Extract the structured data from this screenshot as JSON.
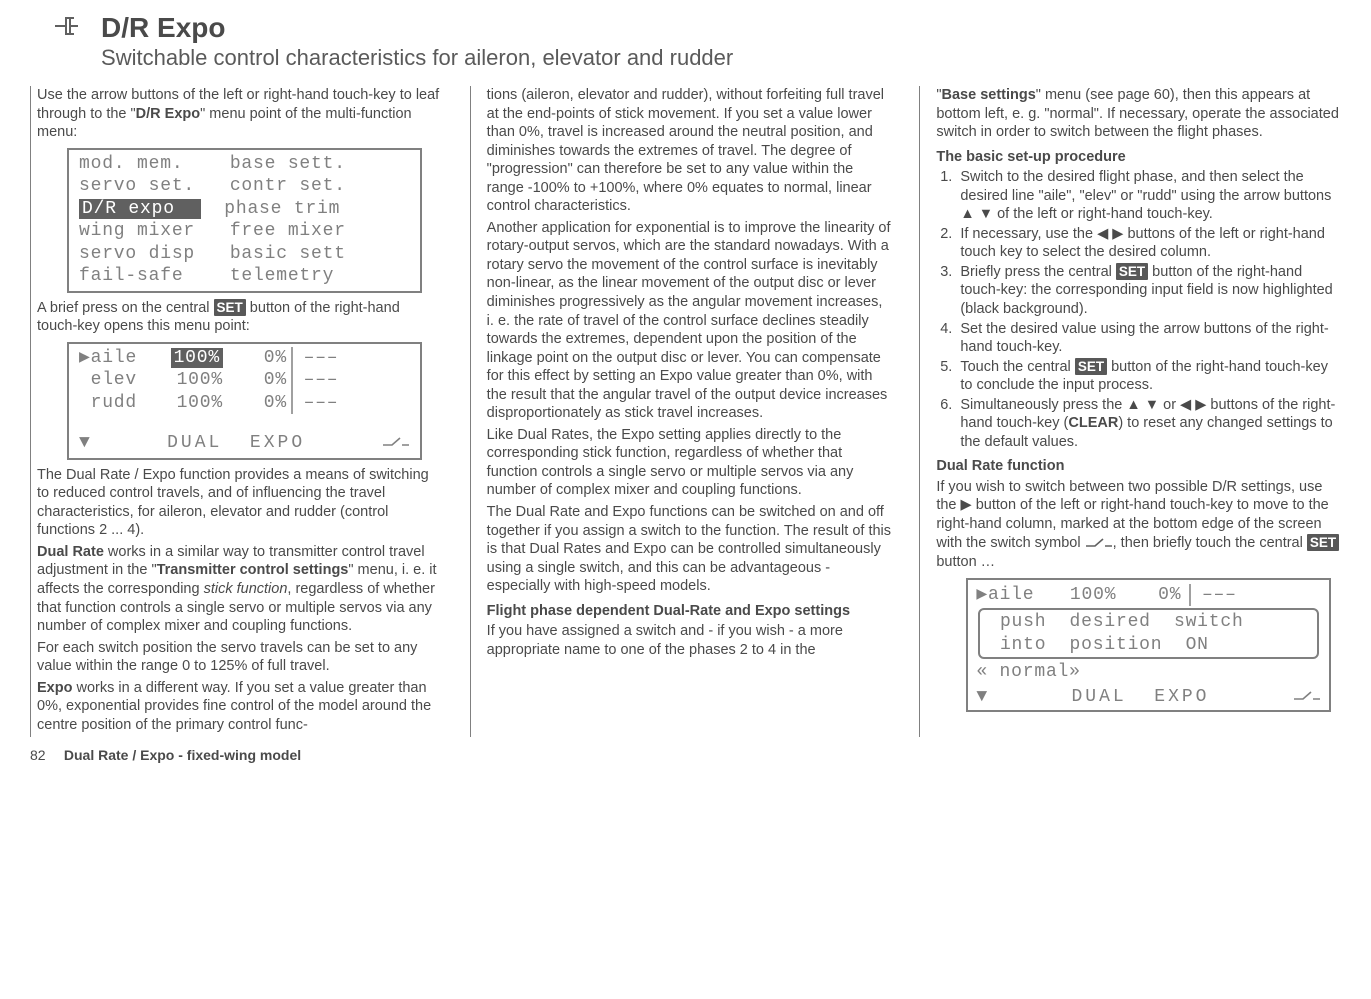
{
  "header": {
    "title": "D/R Expo",
    "subtitle": "Switchable control characteristics for aileron, elevator and rudder"
  },
  "col1": {
    "p1a": "Use the arrow buttons of the left or right-hand touch-key to leaf through to the \"",
    "p1b": "D/R Expo",
    "p1c": "\" menu point of the multi-function menu:",
    "lcd1": {
      "rows": [
        [
          "mod. mem.",
          "base sett."
        ],
        [
          "servo set.",
          "contr set."
        ],
        [
          "D/R expo",
          "phase trim"
        ],
        [
          "wing mixer",
          "free mixer"
        ],
        [
          "servo disp",
          "basic sett"
        ],
        [
          "fail-safe",
          "telemetry"
        ]
      ],
      "highlight_row": 2
    },
    "p2a": "A brief press on the central ",
    "p2b": "SET",
    "p2c": " button of the right-hand touch-key opens this menu point:",
    "lcd2": {
      "rows": [
        {
          "ch": "aile",
          "dual": "100%",
          "expo": "0%",
          "sw": "–––",
          "sel": true,
          "hl": true
        },
        {
          "ch": "elev",
          "dual": "100%",
          "expo": "0%",
          "sw": "–––"
        },
        {
          "ch": "rudd",
          "dual": "100%",
          "expo": "0%",
          "sw": "–––"
        }
      ],
      "bottom": {
        "l": "DUAL",
        "r": "EXPO"
      }
    },
    "p3": "The Dual Rate / Expo function provides a means of switching to reduced control travels, and of influencing the travel characteristics, for aileron, elevator and rudder (control functions 2 ... 4).",
    "p4a": "Dual Rate",
    "p4b": " works in a similar way to transmitter control travel adjustment in the \"",
    "p4c": "Transmitter control settings",
    "p4d": "\" menu, i. e. it affects the corresponding ",
    "p4e": "stick function",
    "p4f": ", regardless of whether that function controls a single servo or multiple servos via any number of complex mixer and coupling functions.",
    "p5": "For each switch position the servo travels can be set to any value within the range 0 to 125% of full travel.",
    "p6a": "Expo",
    "p6b": " works in a different way. If you set a value greater than 0%, exponential provides fine control of the model around the centre position of the primary control func-"
  },
  "col2": {
    "p1": "tions (aileron, elevator and rudder), without forfeiting full travel at the end-points of stick movement. If you set a value lower than 0%, travel is increased around the neutral position, and diminishes towards the extremes of travel. The degree of \"progression\" can therefore be set to any value within the range -100% to +100%, where 0% equates to normal, linear control characteristics.",
    "p2": "Another application for exponential is to improve the linearity of rotary-output servos, which are the standard nowadays. With a rotary servo the movement of the control surface is inevitably non-linear, as the linear movement of the output disc or lever diminishes progressively as the angular movement increases, i. e. the rate of travel of the control surface declines steadily towards the extremes, dependent upon the position of the linkage point on the output disc or lever. You can compensate for this effect by setting an Expo value greater than 0%, with the result that the angular travel of the output device increases disproportionately as stick travel increases.",
    "p3": "Like Dual Rates, the Expo setting applies directly to the corresponding stick function, regardless of whether that function controls a single servo or multiple servos via any number of complex mixer and coupling functions.",
    "p4": "The Dual Rate and Expo functions can be switched on and off together if you assign a switch to the function. The result of this is that Dual Rates and Expo can be controlled simultaneously using a single switch, and this can be advantageous - especially with high-speed models.",
    "h1": "Flight phase dependent Dual-Rate and Expo settings",
    "p5": "If you have assigned a switch and - if you wish - a more appropriate name to one of the phases 2 to 4 in the"
  },
  "col3": {
    "p1a": "\"",
    "p1b": "Base settings",
    "p1c": "\" menu (see page 60), then this appears at bottom left, e. g. \"normal\". If necessary, operate the associated switch in order to switch between the flight phases.",
    "h1": "The basic set-up procedure",
    "steps": [
      "Switch to the desired flight phase, and then select the desired line \"aile\", \"elev\" or \"rudd\" using the arrow buttons ▲ ▼ of the left or right-hand touch-key.",
      "If necessary, use the ◀ ▶ buttons of the left or right-hand touch key to select the desired column.",
      "Briefly press the central |SET| button of the right-hand touch-key: the corresponding input field is now highlighted (black background).",
      "Set the desired value using the arrow buttons of the right-hand touch-key.",
      "Touch the central |SET| button of the right-hand touch-key to conclude the input process.",
      "Simultaneously press the ▲ ▼ or ◀ ▶ buttons of the right-hand touch-key (|CLEAR|) to reset any changed settings to the default values."
    ],
    "h2": "Dual Rate function",
    "p2a": "If you wish to switch between two possible D/R settings, use the ▶ button of the left or right-hand touch-key to move to the right-hand column, marked at the bottom edge of the screen with the switch symbol ",
    "p2b": ", then briefly touch the central ",
    "p2c": "SET",
    "p2d": " button …",
    "lcd3": {
      "row": {
        "ch": "aile",
        "dual": "100%",
        "expo": "0%",
        "sw": "–––"
      },
      "msg1": " push  desired  switch",
      "msg2": " into  position  ON",
      "phase": "« normal»",
      "bottom": {
        "l": "DUAL",
        "r": "EXPO"
      }
    }
  },
  "footer": {
    "page": "82",
    "label": "Dual Rate / Expo - fixed-wing model"
  }
}
